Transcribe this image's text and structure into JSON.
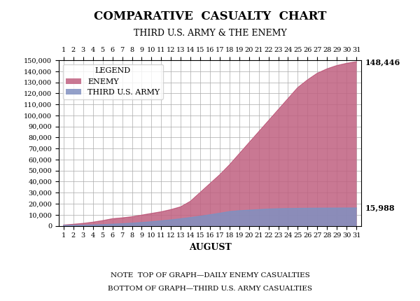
{
  "chart_data": {
    "type": "area",
    "title": "COMPARATIVE  CASUALTY  CHART",
    "subtitle": "THIRD U.S. ARMY & THE ENEMY",
    "x_label": "AUGUST",
    "x": [
      1,
      2,
      3,
      4,
      5,
      6,
      7,
      8,
      9,
      10,
      11,
      12,
      13,
      14,
      15,
      16,
      17,
      18,
      19,
      20,
      21,
      22,
      23,
      24,
      25,
      26,
      27,
      28,
      29,
      30,
      31
    ],
    "series": [
      {
        "name": "ENEMY",
        "color": "#c06080",
        "values": [
          500,
          1200,
          2000,
          3100,
          4500,
          6200,
          7000,
          8000,
          9500,
          11000,
          12500,
          14500,
          17000,
          22000,
          30000,
          38000,
          46000,
          55000,
          65000,
          75000,
          85000,
          95000,
          105000,
          115000,
          125000,
          132000,
          138000,
          142000,
          145000,
          147000,
          148446
        ]
      },
      {
        "name": "THIRD U.S. ARMY",
        "color": "#8090c0",
        "values": [
          100,
          250,
          400,
          600,
          900,
          1300,
          1700,
          2200,
          2800,
          3500,
          4300,
          5200,
          6200,
          7300,
          8500,
          9800,
          11200,
          12700,
          13500,
          14000,
          14500,
          15000,
          15300,
          15500,
          15650,
          15750,
          15830,
          15880,
          15920,
          15960,
          15988
        ]
      }
    ],
    "xlim": [
      0.5,
      31.5
    ],
    "xticks": [
      1,
      2,
      3,
      4,
      5,
      6,
      7,
      8,
      9,
      10,
      11,
      12,
      13,
      14,
      15,
      16,
      17,
      18,
      19,
      20,
      21,
      22,
      23,
      24,
      25,
      26,
      27,
      28,
      29,
      30,
      31
    ],
    "ylim": [
      0,
      150000
    ],
    "yticks": [
      0,
      {
        "value": 10000,
        "label": "10,000"
      },
      {
        "value": 20000,
        "label": "20,000"
      },
      {
        "value": 30000,
        "label": "30,000"
      },
      {
        "value": 40000,
        "label": "40,000"
      },
      {
        "value": 50000,
        "label": "50,000"
      },
      {
        "value": 60000,
        "label": "60,000"
      },
      {
        "value": 70000,
        "label": "70,000"
      },
      {
        "value": 80000,
        "label": "80,000"
      },
      {
        "value": 90000,
        "label": "90,000"
      },
      {
        "value": 100000,
        "label": "100,000"
      },
      {
        "value": 110000,
        "label": "110,000"
      },
      {
        "value": 120000,
        "label": "120,000"
      },
      {
        "value": 130000,
        "label": "130,000"
      },
      {
        "value": 140000,
        "label": "140,000"
      },
      {
        "value": 150000,
        "label": "150,000"
      }
    ],
    "grid": true,
    "stacked": false,
    "legend": "upper left",
    "legend_title": "LEGEND",
    "annotations": [
      {
        "text": "148,446",
        "y": 148446
      },
      {
        "text": "15,988",
        "y": 15988
      },
      {
        "text": "NOTE  TOP OF GRAPH—DAILY ENEMY CASUALTIES"
      },
      {
        "text": "BOTTOM OF GRAPH—THIRD U.S. ARMY CASUALTIES"
      }
    ]
  }
}
